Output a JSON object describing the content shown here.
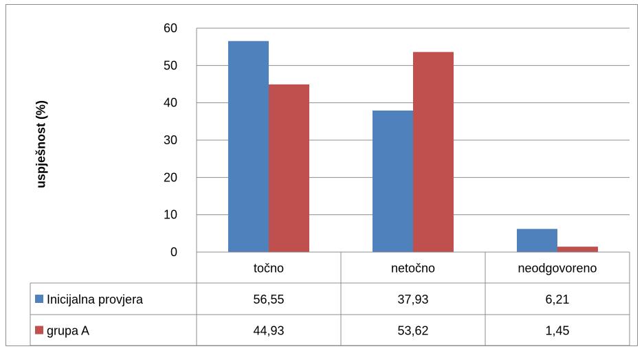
{
  "chart_data": {
    "type": "bar",
    "title": "",
    "xlabel": "",
    "ylabel": "uspješnost (%)",
    "ylim": [
      0,
      60
    ],
    "yticks": [
      0,
      10,
      20,
      30,
      40,
      50,
      60
    ],
    "grid": true,
    "legend": "table-left",
    "categories": [
      "točno",
      "netočno",
      "neodgovoreno"
    ],
    "series": [
      {
        "name": "Inicijalna provjera",
        "color": "#4f81bd",
        "values": [
          56.55,
          37.93,
          6.21
        ],
        "labels": [
          "56,55",
          "37,93",
          "6,21"
        ]
      },
      {
        "name": "grupa A",
        "color": "#c0504d",
        "values": [
          44.93,
          53.62,
          1.45
        ],
        "labels": [
          "44,93",
          "53,62",
          "1,45"
        ]
      }
    ]
  }
}
